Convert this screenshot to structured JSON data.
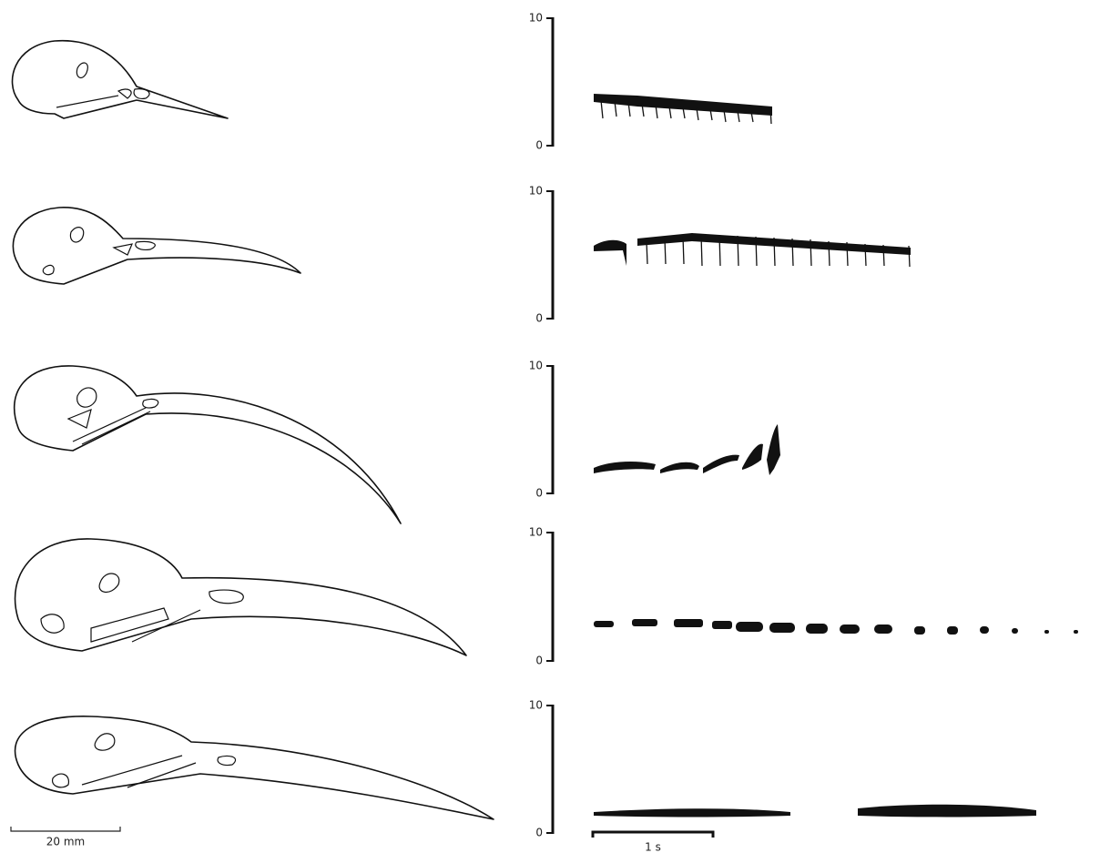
{
  "panels": [
    {
      "ylim": [
        0,
        10
      ],
      "yticks": [
        0,
        10
      ]
    },
    {
      "ylim": [
        0,
        10
      ],
      "yticks": [
        0,
        10
      ]
    },
    {
      "ylim": [
        0,
        10
      ],
      "yticks": [
        0,
        10
      ]
    },
    {
      "ylim": [
        0,
        10
      ],
      "yticks": [
        0,
        10
      ]
    },
    {
      "ylim": [
        0,
        10
      ],
      "yticks": [
        0,
        10
      ]
    }
  ],
  "scale_bars": {
    "length": "20 mm",
    "time": "1 s"
  }
}
